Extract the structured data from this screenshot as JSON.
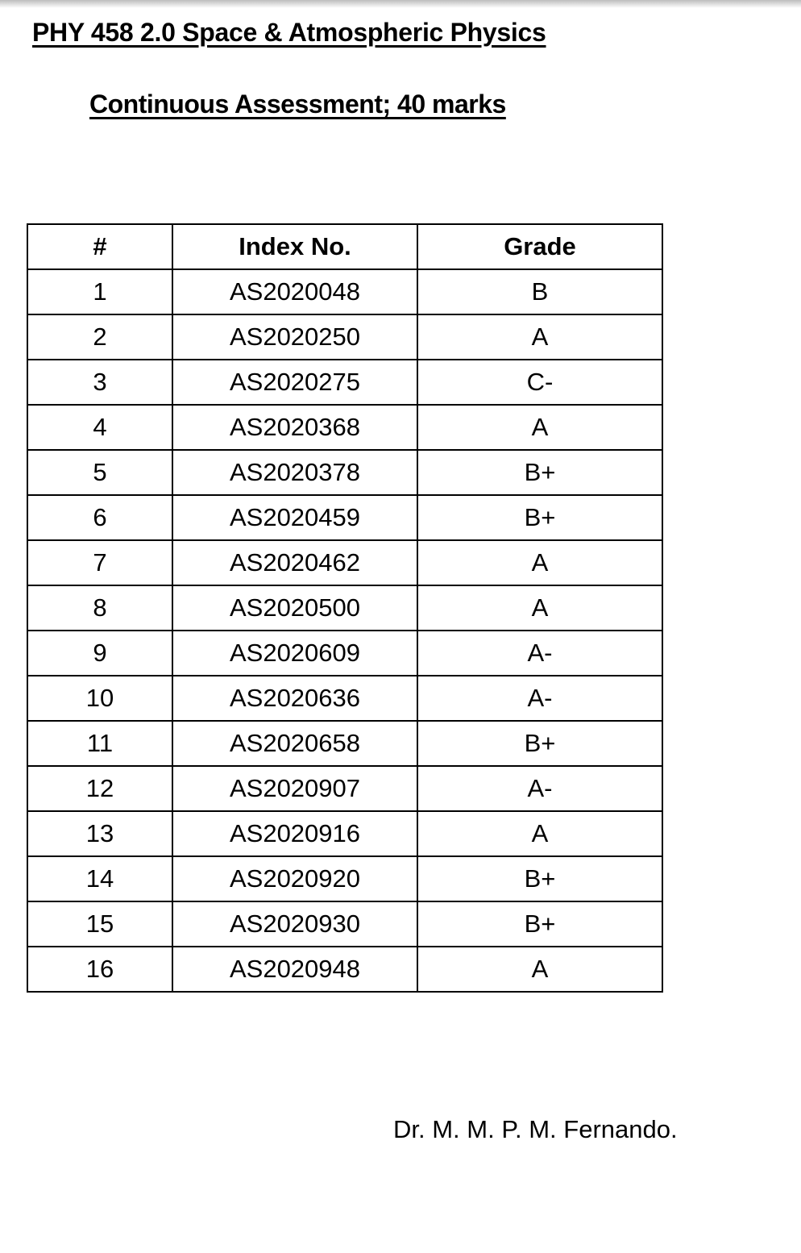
{
  "title": "PHY 458 2.0 Space & Atmospheric Physics",
  "subtitle": "Continuous Assessment; 40 marks",
  "table": {
    "headers": [
      "#",
      "Index No.",
      "Grade"
    ],
    "rows": [
      [
        "1",
        "AS2020048",
        "B"
      ],
      [
        "2",
        "AS2020250",
        "A"
      ],
      [
        "3",
        "AS2020275",
        "C-"
      ],
      [
        "4",
        "AS2020368",
        "A"
      ],
      [
        "5",
        "AS2020378",
        "B+"
      ],
      [
        "6",
        "AS2020459",
        "B+"
      ],
      [
        "7",
        "AS2020462",
        "A"
      ],
      [
        "8",
        "AS2020500",
        "A"
      ],
      [
        "9",
        "AS2020609",
        "A-"
      ],
      [
        "10",
        "AS2020636",
        "A-"
      ],
      [
        "11",
        "AS2020658",
        "B+"
      ],
      [
        "12",
        "AS2020907",
        "A-"
      ],
      [
        "13",
        "AS2020916",
        "A"
      ],
      [
        "14",
        "AS2020920",
        "B+"
      ],
      [
        "15",
        "AS2020930",
        "B+"
      ],
      [
        "16",
        "AS2020948",
        "A"
      ]
    ]
  },
  "signature": "Dr. M. M. P. M. Fernando."
}
